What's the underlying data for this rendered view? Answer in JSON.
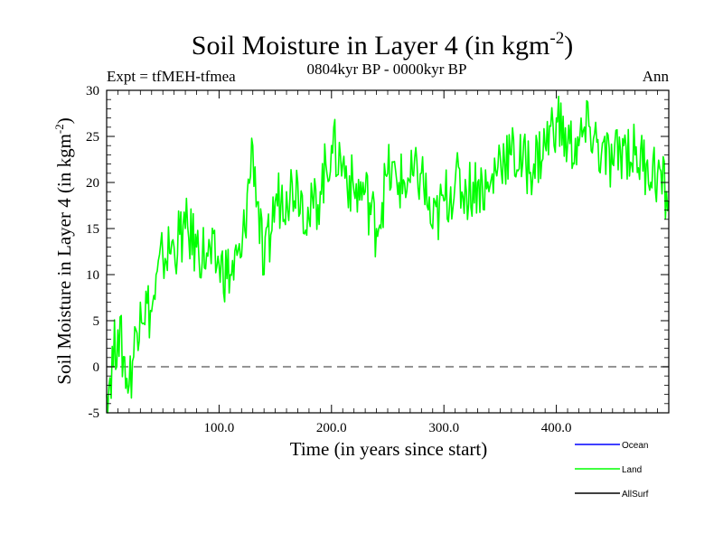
{
  "chart_data": {
    "type": "line",
    "title": "Soil Moisture in Layer 4 (in kgm",
    "title_superscript": "-2",
    "title_close": ")",
    "experiment_label": "Expt = tfMEH-tfmea",
    "period_label": "0804kyr BP - 0000kyr BP",
    "season_label": "Ann",
    "xlabel": "Time (in years since start)",
    "ylabel": "Soil Moisture in Layer 4 (in kgm",
    "ylabel_superscript": "-2",
    "ylabel_close": ")",
    "xlim": [
      0,
      500
    ],
    "ylim": [
      -5,
      30
    ],
    "x_ticks": [
      100,
      200,
      300,
      400
    ],
    "x_tick_labels": [
      "100.0",
      "200.0",
      "300.0",
      "400.0"
    ],
    "y_ticks": [
      -5,
      0,
      5,
      10,
      15,
      20,
      25,
      30
    ],
    "y_tick_labels": [
      "-5",
      "0",
      "5",
      "10",
      "15",
      "20",
      "25",
      "30"
    ],
    "zero_line": 0,
    "legend_position": "bottom-right",
    "series": [
      {
        "name": "Ocean",
        "color": "#0000ff",
        "x": [],
        "values": []
      },
      {
        "name": "Land",
        "color": "#00ff00",
        "x": [
          0,
          10,
          20,
          30,
          40,
          50,
          60,
          70,
          80,
          90,
          100,
          110,
          120,
          130,
          140,
          150,
          160,
          170,
          180,
          190,
          200,
          210,
          220,
          230,
          240,
          250,
          260,
          270,
          280,
          290,
          300,
          310,
          320,
          330,
          340,
          350,
          360,
          370,
          380,
          390,
          400,
          410,
          420,
          430,
          440,
          450,
          460,
          470,
          480,
          490,
          500
        ],
        "values": [
          -3,
          4,
          -2,
          7,
          6,
          12,
          13,
          15,
          13,
          12,
          11,
          10,
          12,
          24,
          10,
          18,
          19,
          20,
          16,
          19,
          24,
          22,
          19,
          19,
          15,
          21,
          20,
          20,
          21,
          15,
          18,
          20,
          19,
          20,
          19,
          23,
          23,
          22,
          22,
          24,
          27,
          24,
          24,
          26,
          23,
          22,
          24,
          23,
          22,
          21,
          18
        ]
      },
      {
        "name": "AllSurf",
        "color": "#000000",
        "x": [],
        "values": []
      }
    ]
  }
}
